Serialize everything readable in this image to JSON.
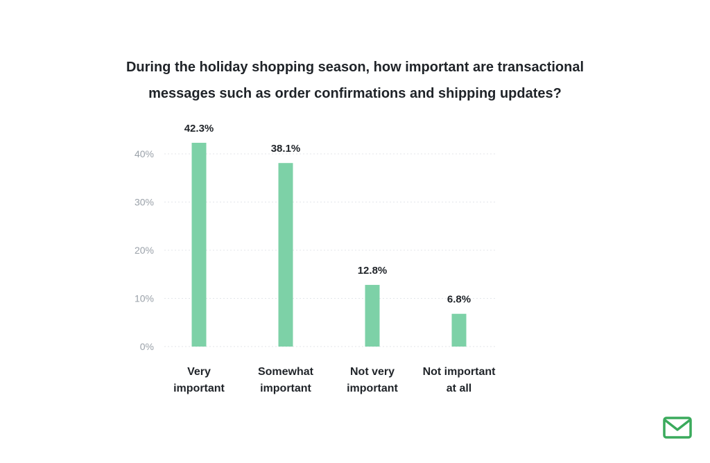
{
  "title_lines": [
    "During the holiday shopping season, how important are transactional",
    "messages such as order confirmations and shipping updates?"
  ],
  "colors": {
    "bar": "#7dd1a7",
    "text": "#1f2328",
    "tick": "#9aa1a9",
    "grid": "#e3e6ea",
    "logo": "#3aaa5c"
  },
  "logo_icon": "envelope-check-icon",
  "chart_data": {
    "type": "bar",
    "categories": [
      [
        "Very",
        "important"
      ],
      [
        "Somewhat",
        "important"
      ],
      [
        "Not very",
        "important"
      ],
      [
        "Not important",
        "at all"
      ]
    ],
    "values": [
      42.3,
      38.1,
      12.8,
      6.8
    ],
    "value_labels": [
      "42.3%",
      "38.1%",
      "12.8%",
      "6.8%"
    ],
    "y_ticks": [
      0,
      10,
      20,
      30,
      40
    ],
    "y_tick_labels": [
      "0%",
      "10%",
      "20%",
      "30%",
      "40%"
    ],
    "ylim": [
      0,
      40
    ],
    "grid": true,
    "legend": "none",
    "xlabel": "",
    "ylabel": ""
  }
}
